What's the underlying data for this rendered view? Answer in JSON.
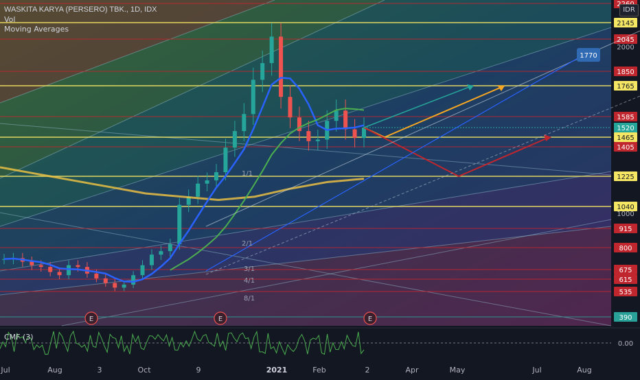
{
  "header": {
    "symbol_line": "WASKITA KARYA (PERSERO) TBK., 1D, IDX",
    "vol_label": "Vol",
    "ma_label": "Moving Averages",
    "currency": "IDR"
  },
  "indicator": {
    "label": "CMF (3)",
    "zero_label": "0.00"
  },
  "colors": {
    "background": "#131722",
    "candle_up": "#26a69a",
    "candle_down": "#ef5350",
    "ma_fast": "#2962ff",
    "ma_mid": "#4caf50",
    "ma_slow": "#f5c542",
    "level_yellow": "#f5e663",
    "level_red": "#c0262d",
    "projection_up": "#f5a623",
    "projection_down": "#c0262d",
    "projection_teal": "#26a69a"
  },
  "chart_data": {
    "type": "candlestick",
    "title": "WASKITA KARYA (PERSERO) TBK., 1D, IDX",
    "currency": "IDR",
    "x_tick_labels": [
      "Jul",
      "Aug",
      "3",
      "Oct",
      "9",
      "2021",
      "Feb",
      "2",
      "Apr",
      "May",
      "Jul",
      "Aug"
    ],
    "y_tick_labels": [
      1000,
      2000
    ],
    "price_levels": [
      {
        "value": 2260,
        "color": "red"
      },
      {
        "value": 2145,
        "color": "yellow"
      },
      {
        "value": 2045,
        "color": "red"
      },
      {
        "value": 1850,
        "color": "red"
      },
      {
        "value": 1765,
        "color": "yellow"
      },
      {
        "value": 1585,
        "color": "red"
      },
      {
        "value": 1465,
        "color": "yellow"
      },
      {
        "value": 1405,
        "color": "red"
      },
      {
        "value": 1225,
        "color": "yellow"
      },
      {
        "value": 1040,
        "color": "yellow"
      },
      {
        "value": 915,
        "color": "red"
      },
      {
        "value": 800,
        "color": "red"
      },
      {
        "value": 675,
        "color": "red"
      },
      {
        "value": 615,
        "color": "red"
      },
      {
        "value": 535,
        "color": "red"
      },
      {
        "value": 390,
        "color": "teal"
      }
    ],
    "last_price": 1520,
    "target_label": "1770",
    "gann_labels": [
      "1/1",
      "2/1",
      "3/1",
      "4/1",
      "8/1"
    ],
    "earnings_markers": [
      "E",
      "E",
      "E"
    ],
    "price_series_close_approx": [
      735,
      740,
      720,
      700,
      690,
      660,
      640,
      700,
      690,
      650,
      620,
      590,
      560,
      580,
      640,
      700,
      760,
      780,
      820,
      1050,
      1100,
      1180,
      1200,
      1250,
      1400,
      1500,
      1600,
      1800,
      1900,
      2060,
      1700,
      1580,
      1500,
      1440,
      1450,
      1560,
      1620,
      1510,
      1460,
      1520
    ],
    "ma_slow_approx": [
      1280,
      1240,
      1200,
      1160,
      1120,
      1100,
      1080,
      1100,
      1150,
      1190,
      1210
    ],
    "projection_up": [
      1520,
      1765
    ],
    "projection_down": [
      1520,
      1225,
      1465
    ],
    "cmf_range": [
      -0.5,
      0.5
    ]
  }
}
